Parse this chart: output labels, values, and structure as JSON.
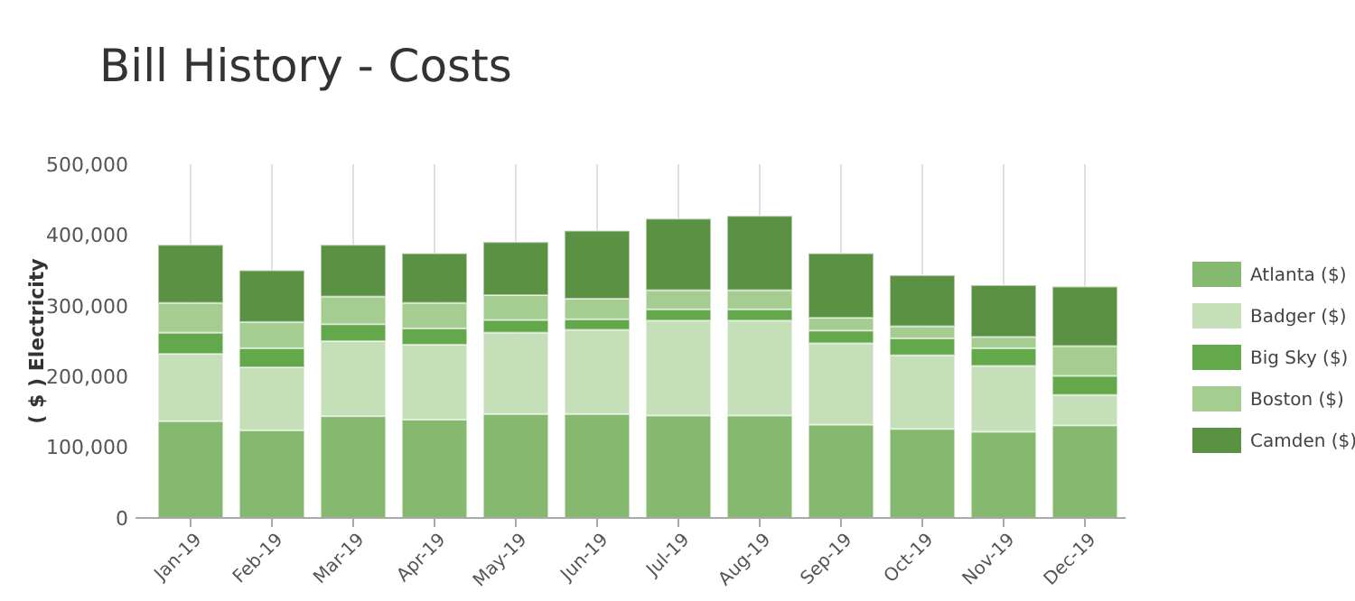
{
  "chart_data": {
    "type": "bar",
    "title": "Bill History - Costs",
    "ylabel": "( $ ) Electricity",
    "stacked": true,
    "grid": "x",
    "legend": "right",
    "categories": [
      "Jan-19",
      "Feb-19",
      "Mar-19",
      "Apr-19",
      "May-19",
      "Jun-19",
      "Jul-19",
      "Aug-19",
      "Sep-19",
      "Oct-19",
      "Nov-19",
      "Dec-19"
    ],
    "ylim": [
      0,
      500000
    ],
    "yticks": [
      {
        "value": 0,
        "label": "0"
      },
      {
        "value": 100000,
        "label": "100,000"
      },
      {
        "value": 200000,
        "label": "200,000"
      },
      {
        "value": 300000,
        "label": "300,000"
      },
      {
        "value": 400000,
        "label": "400,000"
      },
      {
        "value": 500000,
        "label": "500,000"
      }
    ],
    "series": [
      {
        "name": "Atlanta ($)",
        "color": "#84b96f",
        "values": [
          137000,
          124000,
          144000,
          139000,
          147000,
          147000,
          145000,
          145000,
          132000,
          126000,
          122000,
          131000
        ]
      },
      {
        "name": "Badger ($)",
        "color": "#c5dfb9",
        "values": [
          95000,
          89000,
          106000,
          106000,
          115000,
          119000,
          134000,
          134000,
          115000,
          104000,
          93000,
          43000
        ]
      },
      {
        "name": "Big Sky ($)",
        "color": "#64a84c",
        "values": [
          30000,
          27000,
          24000,
          23000,
          18000,
          15000,
          16000,
          16000,
          18000,
          24000,
          25000,
          27000
        ]
      },
      {
        "name": "Boston ($)",
        "color": "#a5cc91",
        "values": [
          42000,
          37000,
          39000,
          36000,
          35000,
          29000,
          27000,
          27000,
          18000,
          17000,
          16000,
          42000
        ]
      },
      {
        "name": "Camden ($)",
        "color": "#5a9143",
        "values": [
          82000,
          73000,
          73000,
          70000,
          75000,
          96000,
          101000,
          105000,
          91000,
          72000,
          73000,
          84000
        ]
      }
    ]
  }
}
